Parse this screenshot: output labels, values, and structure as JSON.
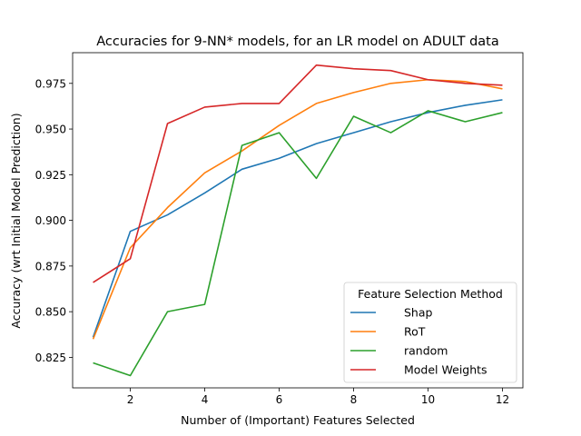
{
  "chart_data": {
    "type": "line",
    "title": "Accuracies for 9-NN* models, for an LR model on ADULT data",
    "xlabel": "Number of (Important) Features Selected",
    "ylabel": "Accuracy (wrt Initial Model Prediction)",
    "x": [
      1,
      2,
      3,
      4,
      5,
      6,
      7,
      8,
      9,
      10,
      11,
      12
    ],
    "xlim": [
      0.45,
      12.55
    ],
    "ylim": [
      0.8083,
      0.9918
    ],
    "xticks": [
      2,
      4,
      6,
      8,
      10,
      12
    ],
    "xtick_labels": [
      "2",
      "4",
      "6",
      "8",
      "10",
      "12"
    ],
    "yticks": [
      0.825,
      0.85,
      0.875,
      0.9,
      0.925,
      0.95,
      0.975
    ],
    "ytick_labels": [
      "0.825",
      "0.850",
      "0.875",
      "0.900",
      "0.925",
      "0.950",
      "0.975"
    ],
    "grid": false,
    "legend": {
      "title": "Feature Selection Method",
      "position": "lower-right"
    },
    "series": [
      {
        "name": "Shap",
        "color": "#1f77b4",
        "values": [
          0.836,
          0.894,
          0.903,
          0.915,
          0.928,
          0.934,
          0.942,
          0.948,
          0.954,
          0.959,
          0.963,
          0.966
        ]
      },
      {
        "name": "RoT",
        "color": "#ff7f0e",
        "values": [
          0.835,
          0.885,
          0.907,
          0.926,
          0.938,
          0.952,
          0.964,
          0.97,
          0.975,
          0.977,
          0.976,
          0.972
        ]
      },
      {
        "name": "random",
        "color": "#2ca02c",
        "values": [
          0.822,
          0.815,
          0.85,
          0.854,
          0.941,
          0.948,
          0.923,
          0.957,
          0.948,
          0.96,
          0.954,
          0.959
        ]
      },
      {
        "name": "Model Weights",
        "color": "#d62728",
        "values": [
          0.866,
          0.879,
          0.953,
          0.962,
          0.964,
          0.964,
          0.985,
          0.983,
          0.982,
          0.977,
          0.975,
          0.974
        ]
      }
    ]
  }
}
